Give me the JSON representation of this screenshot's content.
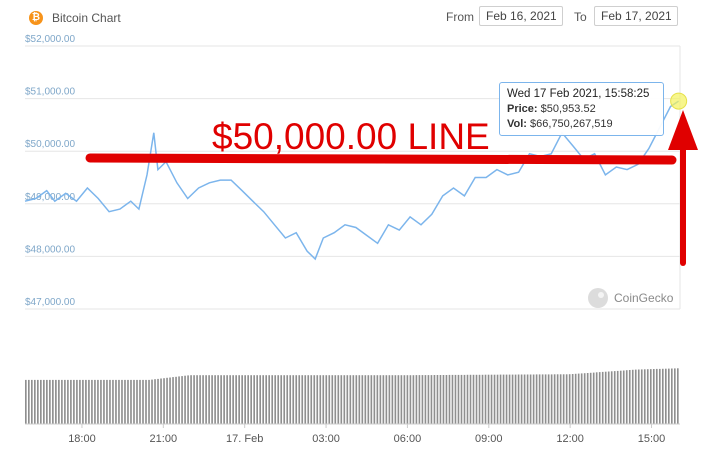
{
  "header": {
    "title": "Bitcoin Chart",
    "from_label": "From",
    "from_date": "Feb 16, 2021",
    "to_label": "To",
    "to_date": "Feb 17, 2021"
  },
  "annotation": {
    "text": "$50,000.00 LINE",
    "color": "#e00000"
  },
  "tooltip": {
    "datetime": "Wed 17 Feb 2021, 15:58:25",
    "price_label": "Price:",
    "price_value": "$50,953.52",
    "vol_label": "Vol:",
    "vol_value": "$66,750,267,519"
  },
  "watermark": "CoinGecko",
  "colors": {
    "price_line": "#7cb5ec",
    "volume_bar": "#8f8f8f",
    "annotation": "#e00000",
    "bitcoin": "#f7931a"
  },
  "chart_data": {
    "type": "line",
    "title": "Bitcoin Chart",
    "y_tick_labels": [
      "$52,000.00",
      "$51,000.00",
      "$50,000.00",
      "$49,000.00",
      "$48,000.00",
      "$47,000.00"
    ],
    "ylim": [
      47000,
      52000
    ],
    "x_tick_labels": [
      "18:00",
      "21:00",
      "17. Feb",
      "03:00",
      "06:00",
      "09:00",
      "12:00",
      "15:00"
    ],
    "x_tick_hours": [
      18,
      21,
      24,
      27,
      30,
      33,
      36,
      39
    ],
    "xlim_hours": [
      15.9,
      40.05
    ],
    "series": [
      {
        "y_label": "Price",
        "x_hours": [
          15.9,
          16.3,
          16.7,
          17.0,
          17.4,
          17.8,
          18.2,
          18.6,
          19.0,
          19.4,
          19.8,
          20.1,
          20.4,
          20.65,
          20.8,
          21.1,
          21.5,
          21.9,
          22.3,
          22.7,
          23.1,
          23.5,
          23.9,
          24.3,
          24.7,
          25.1,
          25.5,
          25.9,
          26.3,
          26.6,
          26.9,
          27.3,
          27.7,
          28.1,
          28.5,
          28.9,
          29.3,
          29.7,
          30.1,
          30.5,
          30.9,
          31.3,
          31.7,
          32.1,
          32.5,
          32.9,
          33.3,
          33.7,
          34.1,
          34.5,
          34.9,
          35.3,
          35.7,
          36.1,
          36.5,
          36.9,
          37.3,
          37.7,
          38.1,
          38.5,
          38.9,
          39.3,
          39.7,
          40.0
        ],
        "price": [
          49050,
          49100,
          49250,
          49050,
          49200,
          49050,
          49300,
          49100,
          48850,
          48900,
          49050,
          48900,
          49550,
          50350,
          49650,
          49800,
          49400,
          49100,
          49300,
          49400,
          49450,
          49450,
          49250,
          49050,
          48850,
          48600,
          48350,
          48450,
          48100,
          47950,
          48350,
          48450,
          48600,
          48550,
          48400,
          48250,
          48600,
          48500,
          48750,
          48600,
          48800,
          49150,
          49300,
          49150,
          49500,
          49500,
          49650,
          49550,
          49600,
          49950,
          49900,
          49950,
          50350,
          50100,
          49850,
          49950,
          49550,
          49700,
          49650,
          49750,
          50050,
          50450,
          50850,
          50953
        ]
      },
      {
        "y_label": "Volume (USD)",
        "x_hours": [
          15.9,
          20.5,
          22.0,
          30.0,
          36.0,
          38.5,
          40.0
        ],
        "volume": [
          64300000000,
          64300000000,
          65300000000,
          65300000000,
          65500000000,
          66500000000,
          66750000000
        ]
      }
    ],
    "grid": true,
    "legend": "none"
  }
}
